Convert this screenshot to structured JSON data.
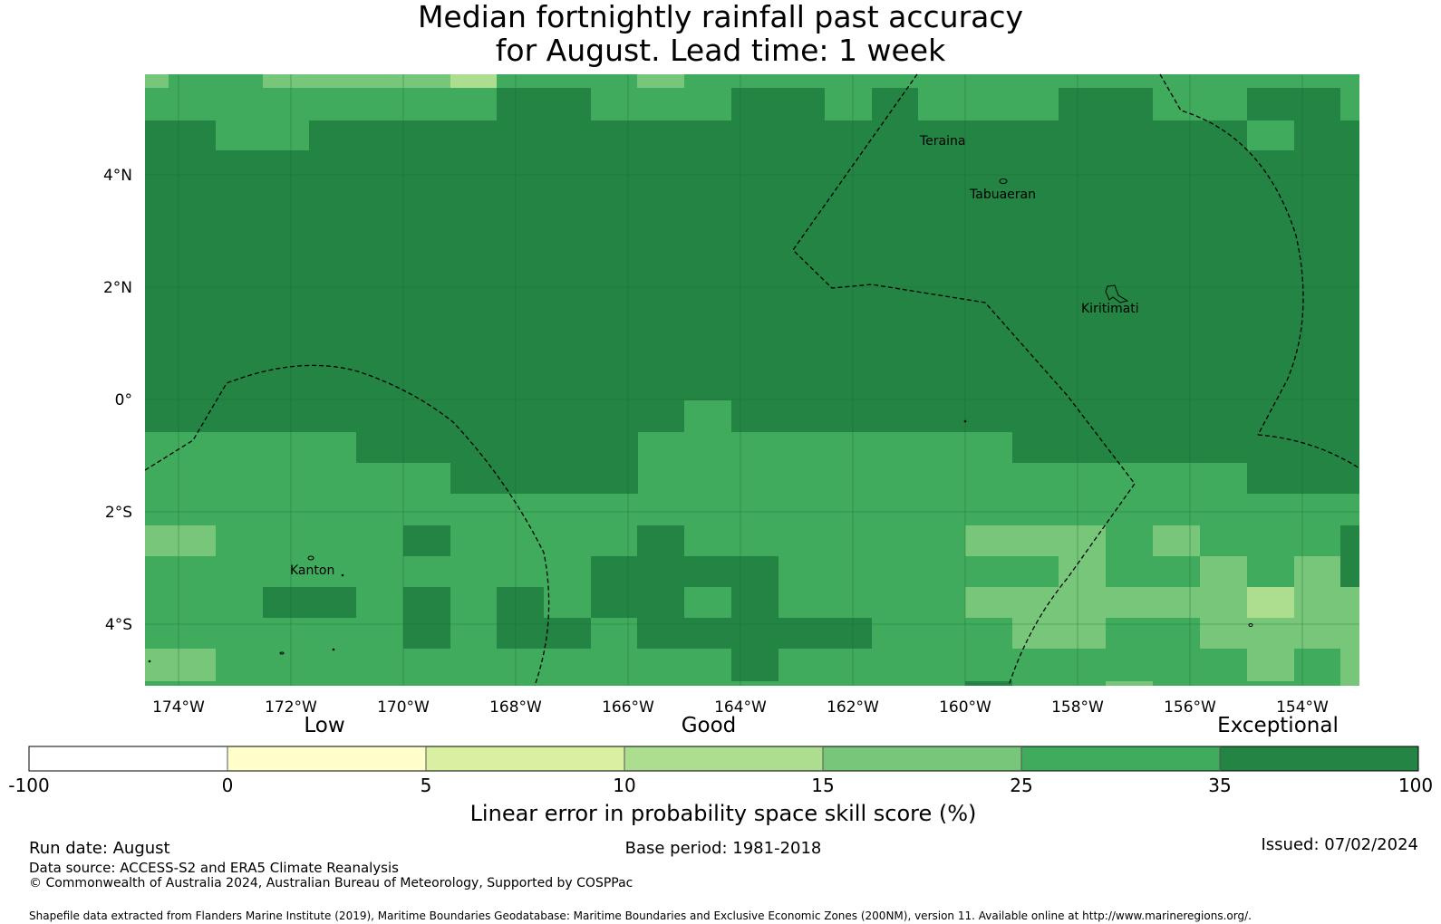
{
  "title": {
    "line1": "Median fortnightly rainfall past accuracy",
    "line2": "for August. Lead time: 1 week"
  },
  "map": {
    "lon_ticks": [
      "174°W",
      "172°W",
      "170°W",
      "168°W",
      "166°W",
      "164°W",
      "162°W",
      "160°W",
      "158°W",
      "156°W",
      "154°W"
    ],
    "lat_ticks": [
      "4°N",
      "2°N",
      "0°",
      "2°S",
      "4°S"
    ],
    "places": [
      "Teraina",
      "Tabuaeran",
      "Kiritimati",
      "Kanton"
    ],
    "colors": {
      "c15_25": "#78c679",
      "c25_35": "#41ab5d",
      "c35_100": "#238443",
      "c10_15": "#addd8e"
    }
  },
  "colorbar": {
    "categories": [
      "Low",
      "Good",
      "Exceptional"
    ],
    "ticks": [
      "-100",
      "0",
      "5",
      "10",
      "15",
      "25",
      "35",
      "100"
    ],
    "colors": [
      "#ffffff",
      "#ffffcc",
      "#d9f0a3",
      "#addd8e",
      "#78c679",
      "#41ab5d",
      "#238443"
    ],
    "label": "Linear error in probability space skill score (%)"
  },
  "footer": {
    "run_date": "Run date: August",
    "base_period": "Base period: 1981-2018",
    "issued": "Issued: 07/02/2024",
    "data_source": "Data source: ACCESS-S2 and ERA5 Climate Reanalysis",
    "copyright": "© Commonwealth of Australia 2024, Australian Bureau of Meteorology, Supported by COSPPac",
    "shapefile": "Shapefile data extracted from Flanders Marine Institute (2019), Maritime Boundaries Geodatabase: Maritime Boundaries and Exclusive Economic Zones (200NM), version 11. Available online at http://www.marineregions.org/."
  }
}
